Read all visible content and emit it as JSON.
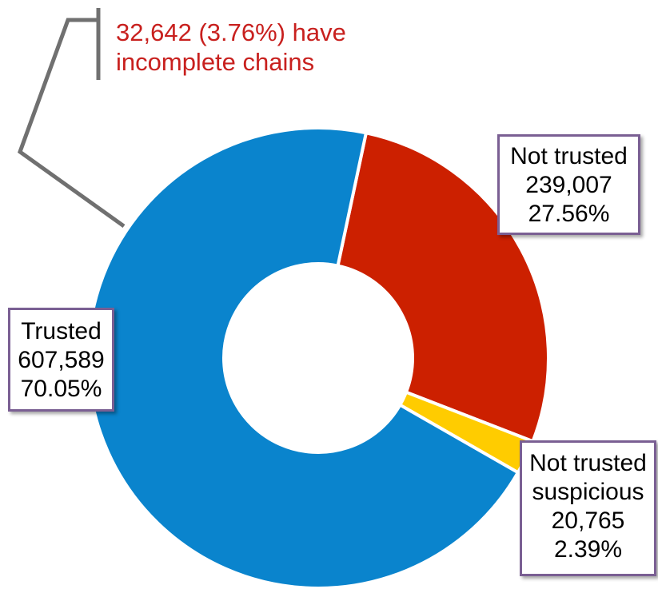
{
  "chart_data": {
    "type": "pie",
    "subtype": "donut",
    "slices": [
      {
        "label": "Trusted",
        "count": "607,589",
        "percent": "70.05%",
        "value": 70.05,
        "color": "#0a84cd"
      },
      {
        "label": "Not trusted",
        "count": "239,007",
        "percent": "27.56%",
        "value": 27.56,
        "color": "#cc2000"
      },
      {
        "label_line1": "Not trusted",
        "label_line2": "suspicious",
        "count": "20,765",
        "percent": "2.39%",
        "value": 2.39,
        "color": "#ffcc00"
      }
    ],
    "annotation": {
      "line1": "32,642 (3.76%) have",
      "line2": "incomplete chains",
      "color": "#c8201e"
    }
  }
}
